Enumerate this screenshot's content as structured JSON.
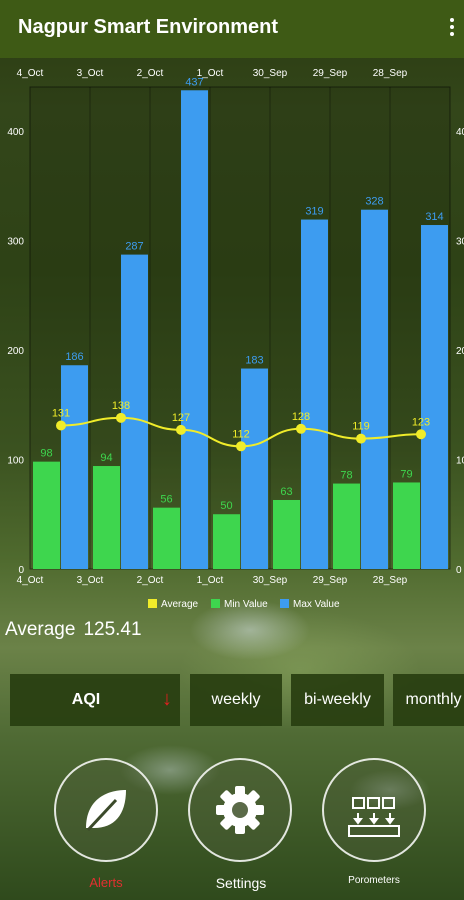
{
  "header": {
    "title": "Nagpur Smart Environment"
  },
  "chart_data": {
    "type": "bar",
    "categories": [
      "4_Oct",
      "3_Oct",
      "2_Oct",
      "1_Oct",
      "30_Sep",
      "29_Sep",
      "28_Sep"
    ],
    "series": [
      {
        "name": "Average",
        "kind": "line",
        "values": [
          131,
          138,
          127,
          112,
          128,
          119,
          123
        ],
        "color": "#f0ec2a"
      },
      {
        "name": "Min Value",
        "kind": "bar",
        "values": [
          98,
          94,
          56,
          50,
          63,
          78,
          79
        ],
        "color": "#3ed64e"
      },
      {
        "name": "Max Value",
        "kind": "bar",
        "values": [
          186,
          287,
          437,
          183,
          319,
          328,
          314
        ],
        "color": "#3d9cf0"
      }
    ],
    "yticks": [
      0,
      100,
      200,
      300,
      400
    ],
    "ylim": [
      0,
      440
    ],
    "grid": true,
    "legend": "bottom"
  },
  "summary": {
    "label": "Average",
    "value": "125.41"
  },
  "tabs": [
    {
      "label": "AQI",
      "icon": "down-arrow-icon"
    },
    {
      "label": "weekly"
    },
    {
      "label": "bi-weekly"
    },
    {
      "label": "monthly"
    }
  ],
  "nav": [
    {
      "label": "Alerts",
      "icon": "leaf-icon",
      "color": "#e03030"
    },
    {
      "label": "Settings",
      "icon": "gear-icon"
    },
    {
      "label": "Porometers",
      "icon": "grid-icon"
    }
  ]
}
